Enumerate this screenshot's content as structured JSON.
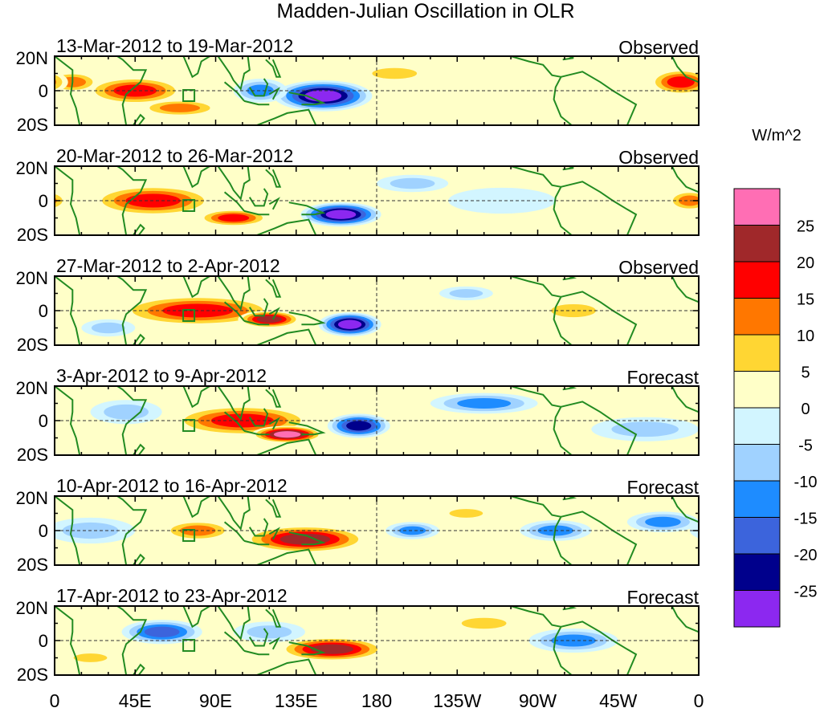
{
  "chart_data": {
    "type": "heatmap",
    "title": "Madden-Julian Oscillation in OLR",
    "units": "W/m^2",
    "x_tick_labels": [
      "0",
      "45E",
      "90E",
      "135E",
      "180",
      "135W",
      "90W",
      "45W",
      "0"
    ],
    "x_range_deg_east": [
      0,
      360
    ],
    "y_tick_labels": [
      "20N",
      "0",
      "20S"
    ],
    "y_range_deg": [
      -20,
      20
    ],
    "colorbar": {
      "tick_labels": [
        "25",
        "20",
        "15",
        "10",
        "5",
        "0",
        "-5",
        "-10",
        "-15",
        "-20",
        "-25"
      ],
      "bins": [
        {
          "range": ">25",
          "color": "#ff6eb4"
        },
        {
          "range": "20 to 25",
          "color": "#a0282a"
        },
        {
          "range": "15 to 20",
          "color": "#ff0000"
        },
        {
          "range": "10 to 15",
          "color": "#ff7700"
        },
        {
          "range": "5 to 10",
          "color": "#ffd633"
        },
        {
          "range": "0 to 5",
          "color": "#ffffc8"
        },
        {
          "range": "-5 to 0",
          "color": "#d2f5ff"
        },
        {
          "range": "-10 to -5",
          "color": "#a0d2ff"
        },
        {
          "range": "-15 to -10",
          "color": "#1e8cff"
        },
        {
          "range": "-20 to -15",
          "color": "#3c64dc"
        },
        {
          "range": "-25 to -20",
          "color": "#00008c"
        },
        {
          "range": "<-25",
          "color": "#8c28f0"
        }
      ]
    },
    "coastline_color": "#228b22",
    "panels": [
      {
        "period": "13-Mar-2012 to 19-Mar-2012",
        "status": "Observed",
        "features": [
          {
            "lon": 45,
            "lat": 0,
            "value": 18,
            "wlon": 55,
            "hlat": 16
          },
          {
            "lon": 10,
            "lat": 5,
            "value": 14,
            "wlon": 30,
            "hlat": 12
          },
          {
            "lon": 70,
            "lat": -10,
            "value": 14,
            "wlon": 45,
            "hlat": 10
          },
          {
            "lon": 150,
            "lat": -3,
            "value": -28,
            "wlon": 55,
            "hlat": 18
          },
          {
            "lon": 115,
            "lat": 0,
            "value": -12,
            "wlon": 30,
            "hlat": 14
          },
          {
            "lon": 350,
            "lat": 5,
            "value": 16,
            "wlon": 35,
            "hlat": 15
          },
          {
            "lon": 190,
            "lat": 10,
            "value": 8,
            "wlon": 40,
            "hlat": 10
          },
          {
            "lon": 240,
            "lat": 10,
            "value": 5,
            "wlon": 50,
            "hlat": 10
          },
          {
            "lon": 300,
            "lat": -10,
            "value": 5,
            "wlon": 40,
            "hlat": 10
          }
        ]
      },
      {
        "period": "20-Mar-2012 to 26-Mar-2012",
        "status": "Observed",
        "features": [
          {
            "lon": 55,
            "lat": 0,
            "value": 20,
            "wlon": 70,
            "hlat": 18
          },
          {
            "lon": 100,
            "lat": -10,
            "value": 16,
            "wlon": 40,
            "hlat": 10
          },
          {
            "lon": 160,
            "lat": -8,
            "value": -27,
            "wlon": 45,
            "hlat": 14
          },
          {
            "lon": 200,
            "lat": 10,
            "value": -8,
            "wlon": 40,
            "hlat": 10
          },
          {
            "lon": 250,
            "lat": 0,
            "value": -5,
            "wlon": 60,
            "hlat": 15
          },
          {
            "lon": 355,
            "lat": 0,
            "value": 14,
            "wlon": 25,
            "hlat": 12
          }
        ]
      },
      {
        "period": "27-Mar-2012 to 2-Apr-2012",
        "status": "Observed",
        "features": [
          {
            "lon": 80,
            "lat": 0,
            "value": 20,
            "wlon": 90,
            "hlat": 18
          },
          {
            "lon": 120,
            "lat": -5,
            "value": 25,
            "wlon": 35,
            "hlat": 10
          },
          {
            "lon": 165,
            "lat": -8,
            "value": -27,
            "wlon": 35,
            "hlat": 14
          },
          {
            "lon": 230,
            "lat": 10,
            "value": -10,
            "wlon": 30,
            "hlat": 8
          },
          {
            "lon": 30,
            "lat": -10,
            "value": -8,
            "wlon": 30,
            "hlat": 10
          },
          {
            "lon": 290,
            "lat": 0,
            "value": 7,
            "wlon": 40,
            "hlat": 12
          }
        ]
      },
      {
        "period": "3-Apr-2012 to 9-Apr-2012",
        "status": "Forecast",
        "features": [
          {
            "lon": 105,
            "lat": 0,
            "value": 18,
            "wlon": 80,
            "hlat": 18
          },
          {
            "lon": 130,
            "lat": -8,
            "value": 26,
            "wlon": 40,
            "hlat": 10
          },
          {
            "lon": 170,
            "lat": -3,
            "value": -22,
            "wlon": 35,
            "hlat": 14
          },
          {
            "lon": 40,
            "lat": 5,
            "value": -10,
            "wlon": 40,
            "hlat": 14
          },
          {
            "lon": 240,
            "lat": 10,
            "value": -12,
            "wlon": 60,
            "hlat": 12
          },
          {
            "lon": 330,
            "lat": -5,
            "value": -10,
            "wlon": 60,
            "hlat": 14
          }
        ]
      },
      {
        "period": "10-Apr-2012 to 16-Apr-2012",
        "status": "Forecast",
        "features": [
          {
            "lon": 140,
            "lat": -5,
            "value": 24,
            "wlon": 70,
            "hlat": 16
          },
          {
            "lon": 80,
            "lat": 0,
            "value": 15,
            "wlon": 40,
            "hlat": 12
          },
          {
            "lon": 20,
            "lat": 0,
            "value": -8,
            "wlon": 50,
            "hlat": 15
          },
          {
            "lon": 200,
            "lat": 0,
            "value": -12,
            "wlon": 30,
            "hlat": 10
          },
          {
            "lon": 280,
            "lat": 0,
            "value": -13,
            "wlon": 40,
            "hlat": 12
          },
          {
            "lon": 340,
            "lat": 5,
            "value": -12,
            "wlon": 40,
            "hlat": 12
          },
          {
            "lon": 230,
            "lat": 10,
            "value": 10,
            "wlon": 30,
            "hlat": 8
          }
        ]
      },
      {
        "period": "17-Apr-2012 to 23-Apr-2012",
        "status": "Forecast",
        "features": [
          {
            "lon": 155,
            "lat": -5,
            "value": 24,
            "wlon": 60,
            "hlat": 14
          },
          {
            "lon": 60,
            "lat": 5,
            "value": -20,
            "wlon": 45,
            "hlat": 14
          },
          {
            "lon": 120,
            "lat": 5,
            "value": -8,
            "wlon": 40,
            "hlat": 12
          },
          {
            "lon": 290,
            "lat": 0,
            "value": -13,
            "wlon": 50,
            "hlat": 14
          },
          {
            "lon": 240,
            "lat": 10,
            "value": 8,
            "wlon": 40,
            "hlat": 10
          },
          {
            "lon": 20,
            "lat": -10,
            "value": 8,
            "wlon": 30,
            "hlat": 8
          }
        ]
      }
    ]
  }
}
